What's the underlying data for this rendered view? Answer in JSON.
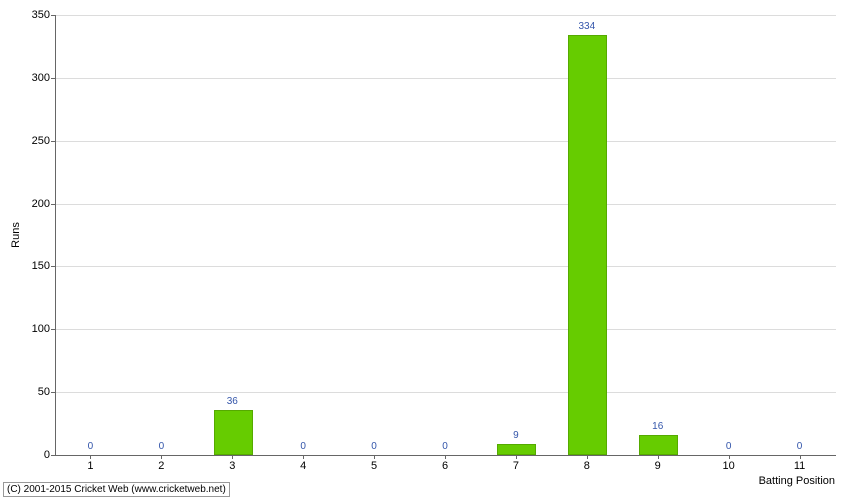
{
  "chart": {
    "type": "bar",
    "ylabel": "Runs",
    "xlabel": "Batting Position",
    "label_fontsize": 11,
    "value_label_fontsize": 10,
    "value_label_color": "#3355aa",
    "background_color": "#ffffff",
    "grid_color": "#dcdcdc",
    "axis_color": "#666666",
    "bar_color": "#66cc00",
    "bar_border_color": "#55aa00",
    "bar_width_ratio": 0.55,
    "ylim": [
      0,
      350
    ],
    "ytick_step": 50,
    "yticks": [
      0,
      50,
      100,
      150,
      200,
      250,
      300,
      350
    ],
    "categories": [
      "1",
      "2",
      "3",
      "4",
      "5",
      "6",
      "7",
      "8",
      "9",
      "10",
      "11"
    ],
    "values": [
      0,
      0,
      36,
      0,
      0,
      0,
      9,
      334,
      16,
      0,
      0
    ]
  },
  "copyright": "(C) 2001-2015 Cricket Web (www.cricketweb.net)"
}
